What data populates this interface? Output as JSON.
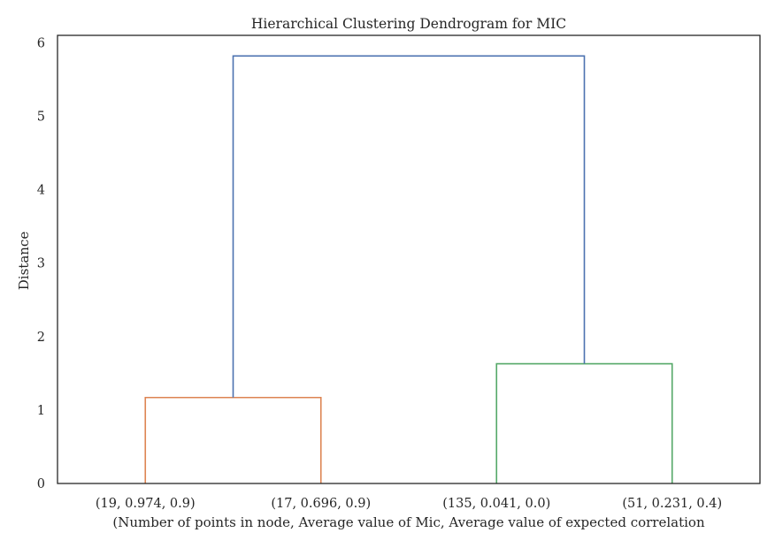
{
  "chart_data": {
    "type": "dendrogram",
    "title": "Hierarchical Clustering Dendrogram for MIC",
    "xlabel": "(Number of points in node, Average value of Mic, Average value of expected correlation",
    "ylabel": "Distance",
    "ylim": [
      0,
      6.1
    ],
    "yticks": [
      "0",
      "1",
      "2",
      "3",
      "4",
      "5",
      "6"
    ],
    "leaves": [
      "(19, 0.974, 0.9)",
      "(17, 0.696, 0.9)",
      "(135, 0.041, 0.0)",
      "(51, 0.231, 0.4)"
    ],
    "links": [
      {
        "left": 0,
        "right": 1,
        "height": 1.17,
        "color": "#dd8452"
      },
      {
        "left": 2,
        "right": 3,
        "height": 1.63,
        "color": "#55a868"
      },
      {
        "left": 4,
        "right": 5,
        "height": 5.82,
        "color": "#4c72b0"
      }
    ],
    "grid": false
  }
}
